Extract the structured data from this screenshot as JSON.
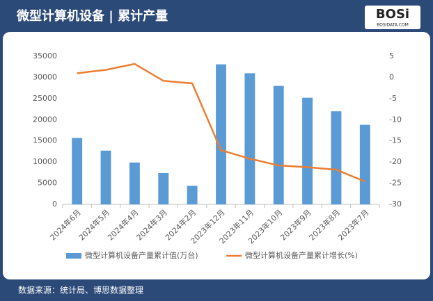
{
  "chart_data": {
    "type": "bar_line",
    "title": "微型计算机设备 | 累计产量",
    "logo": "BOSi",
    "logo_sub": "BOSIDATA.COM",
    "source": "数据来源：统计局、博思数据整理",
    "categories": [
      "2024年6月",
      "2024年5月",
      "2024年4月",
      "2024年3月",
      "2024年2月",
      "2023年12月",
      "2023年11月",
      "2023年10月",
      "2023年9月",
      "2023年8月",
      "2023年7月"
    ],
    "series": [
      {
        "name": "微型计算机设备产量累计值(万台)",
        "type": "bar",
        "color": "#5b9bd5",
        "values": [
          15700,
          12700,
          9900,
          7400,
          4400,
          33100,
          31000,
          28000,
          25200,
          22000,
          18800
        ]
      },
      {
        "name": "微型计算机设备产量累计增长(%)",
        "type": "line",
        "axis": "y2",
        "color": "#ed7d31",
        "values": [
          1,
          1.8,
          3.2,
          -0.8,
          -1.4,
          -17.2,
          -19.2,
          -20.8,
          -21.2,
          -21.8,
          -24.6
        ]
      }
    ],
    "ylim": [
      0,
      35000
    ],
    "yticks": [
      0,
      5000,
      10000,
      15000,
      20000,
      25000,
      30000,
      35000
    ],
    "y2lim": [
      -30,
      5
    ],
    "y2ticks": [
      -30,
      -25,
      -20,
      -15,
      -10,
      -5,
      0,
      5
    ],
    "grid": false
  }
}
